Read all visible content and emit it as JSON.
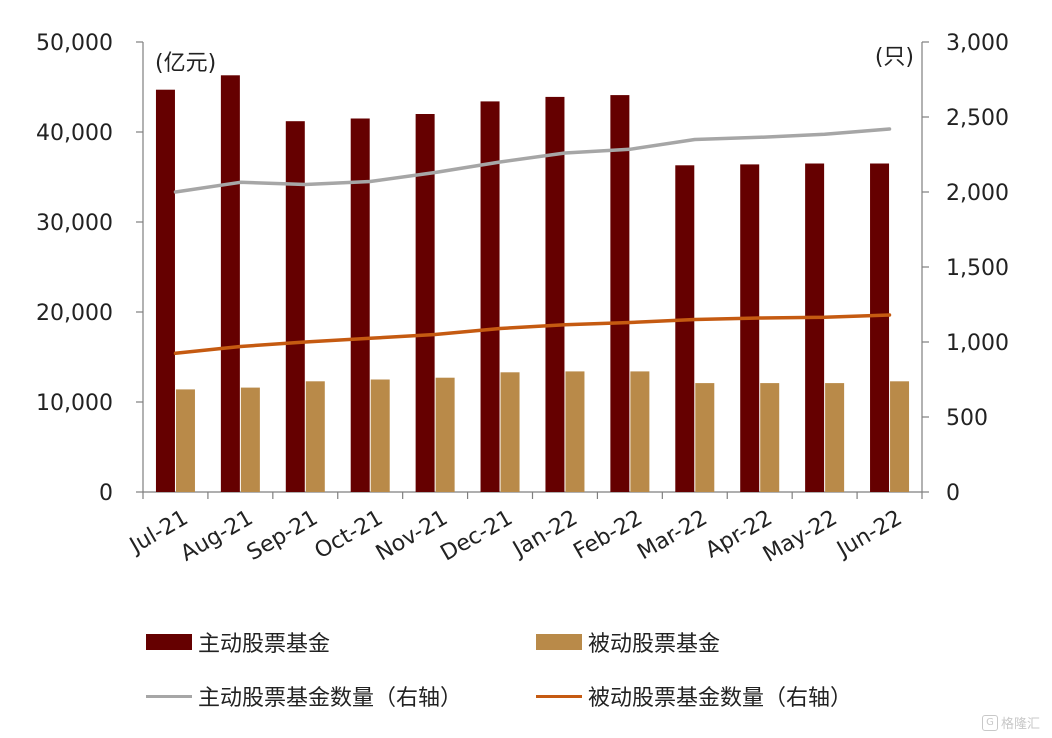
{
  "chart_data": {
    "type": "bar",
    "categories": [
      "Jul-21",
      "Aug-21",
      "Sep-21",
      "Oct-21",
      "Nov-21",
      "Dec-21",
      "Jan-22",
      "Feb-22",
      "Mar-22",
      "Apr-22",
      "May-22",
      "Jun-22"
    ],
    "series": [
      {
        "name": "主动股票基金",
        "type": "bar",
        "axis": "left",
        "values": [
          44700,
          46300,
          41200,
          41500,
          42000,
          43400,
          43900,
          44100,
          36300,
          36400,
          36500,
          36500
        ]
      },
      {
        "name": "被动股票基金",
        "type": "bar",
        "axis": "left",
        "values": [
          11400,
          11600,
          12300,
          12500,
          12700,
          13300,
          13400,
          13400,
          12100,
          12100,
          12100,
          12300
        ]
      },
      {
        "name": "主动股票基金数量（右轴）",
        "type": "line",
        "axis": "right",
        "values": [
          2000,
          2065,
          2050,
          2070,
          2130,
          2200,
          2260,
          2285,
          2350,
          2365,
          2385,
          2420
        ]
      },
      {
        "name": "被动股票基金数量（右轴）",
        "type": "line",
        "axis": "right",
        "values": [
          925,
          970,
          1000,
          1025,
          1050,
          1090,
          1115,
          1130,
          1150,
          1160,
          1165,
          1180
        ]
      }
    ],
    "y_left": {
      "unit": "(亿元)",
      "ylim": [
        0,
        50000
      ],
      "ticks": [
        0,
        10000,
        20000,
        30000,
        40000,
        50000
      ],
      "tick_labels": [
        "0",
        "10,000",
        "20,000",
        "30,000",
        "40,000",
        "50,000"
      ]
    },
    "y_right": {
      "unit": "(只)",
      "ylim": [
        0,
        3000
      ],
      "ticks": [
        0,
        500,
        1000,
        1500,
        2000,
        2500,
        3000
      ],
      "tick_labels": [
        "0",
        "500",
        "1,000",
        "1,500",
        "2,000",
        "2,500",
        "3,000"
      ]
    },
    "grid": false,
    "legend_position": "bottom",
    "colors": {
      "active_bar": "#650000",
      "passive_bar": "#B98A49",
      "active_line": "#A6A6A6",
      "passive_line": "#C55A11"
    }
  },
  "watermark": {
    "text": "格隆汇",
    "icon": "watermark-logo-icon"
  }
}
